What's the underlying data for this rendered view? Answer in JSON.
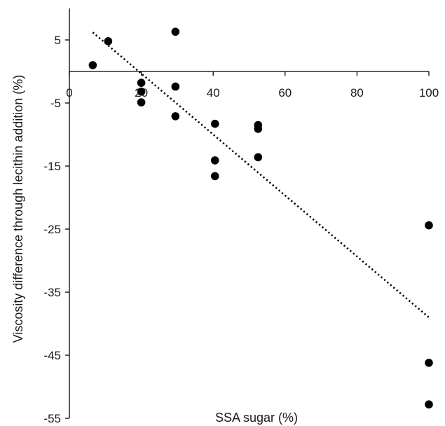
{
  "chart_data": {
    "type": "scatter",
    "title": "",
    "xlabel": "SSA sugar (%)",
    "ylabel": "Viscosity difference through lecithin addition  (%)",
    "xlim": [
      0,
      100
    ],
    "ylim": [
      -55,
      10
    ],
    "x_ticks": [
      0,
      20,
      40,
      60,
      80,
      100
    ],
    "y_ticks": [
      5,
      -5,
      -15,
      -25,
      -35,
      -45,
      -55
    ],
    "grid": false,
    "legend": "none",
    "series": [
      {
        "points": [
          {
            "x": 6.5,
            "y": 1.0
          },
          {
            "x": 10.8,
            "y": 4.8
          },
          {
            "x": 20.0,
            "y": -1.8
          },
          {
            "x": 20.0,
            "y": -3.2
          },
          {
            "x": 20.0,
            "y": -4.9
          },
          {
            "x": 29.5,
            "y": 6.3
          },
          {
            "x": 29.5,
            "y": -2.4
          },
          {
            "x": 29.5,
            "y": -7.1
          },
          {
            "x": 40.5,
            "y": -8.3
          },
          {
            "x": 40.5,
            "y": -14.1
          },
          {
            "x": 40.5,
            "y": -16.6
          },
          {
            "x": 52.5,
            "y": -8.5
          },
          {
            "x": 52.5,
            "y": -9.1
          },
          {
            "x": 52.5,
            "y": -13.6
          },
          {
            "x": 100.0,
            "y": -24.4
          },
          {
            "x": 100.0,
            "y": -46.2
          },
          {
            "x": 100.0,
            "y": -52.8
          }
        ]
      }
    ],
    "trendline": {
      "style": "dotted",
      "from": {
        "x": 6.5,
        "y": 6.2
      },
      "to": {
        "x": 100.0,
        "y": -39.0
      }
    }
  }
}
